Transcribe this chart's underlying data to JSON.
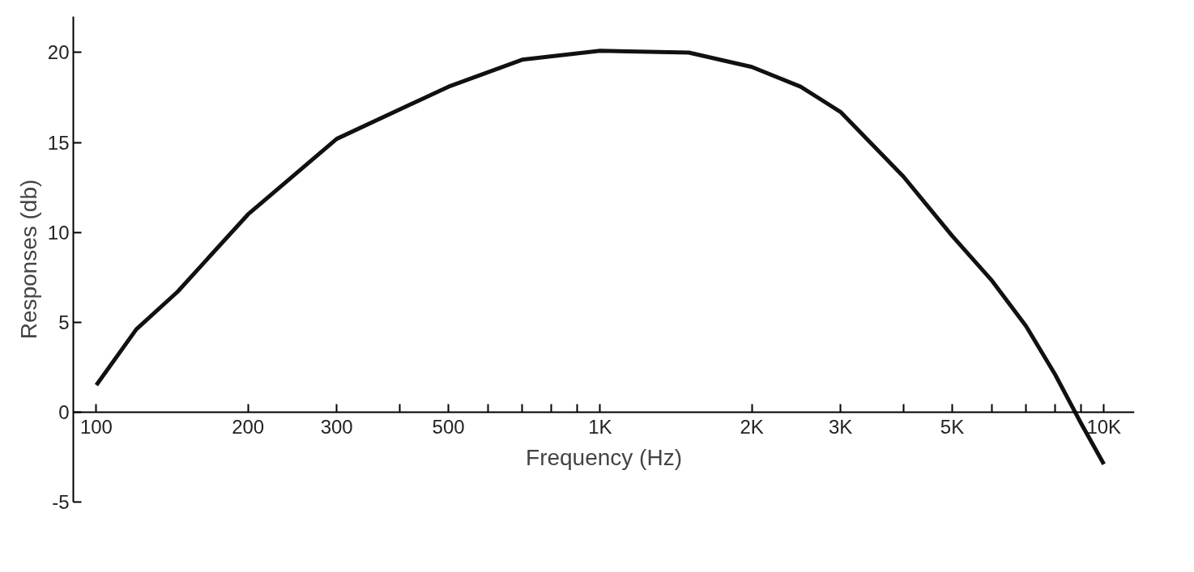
{
  "chart_data": {
    "type": "line",
    "xlabel": "Frequency (Hz)",
    "ylabel": "Responses (db)",
    "log": "x",
    "grid": false,
    "marker": "none",
    "line_style": "solid",
    "x": [
      100,
      120,
      145,
      200,
      300,
      500,
      700,
      1000,
      1500,
      2000,
      2500,
      3000,
      4000,
      5000,
      6000,
      7000,
      8000,
      9000,
      10000
    ],
    "series": [
      {
        "color": "#111111",
        "values": [
          1.5,
          4.6,
          6.7,
          11,
          15.2,
          18.1,
          19.6,
          20.1,
          20,
          19.2,
          18.1,
          16.7,
          13.1,
          9.8,
          7.3,
          4.8,
          2.1,
          -0.6,
          -2.9
        ]
      }
    ],
    "xlim": [
      90,
      11500
    ],
    "ylim": [
      -5,
      22
    ],
    "xticks": [
      100,
      200,
      300,
      {
        "value": 400,
        "label": null
      },
      {
        "value": 500,
        "label": "500"
      },
      {
        "value": 600,
        "label": null
      },
      {
        "value": 700,
        "label": null
      },
      {
        "value": 800,
        "label": null
      },
      {
        "value": 900,
        "label": null
      },
      {
        "value": 1000,
        "label": "1K"
      },
      {
        "value": 2000,
        "label": "2K"
      },
      {
        "value": 3000,
        "label": "3K"
      },
      {
        "value": 4000,
        "label": null
      },
      {
        "value": 5000,
        "label": "5K"
      },
      {
        "value": 6000,
        "label": null
      },
      {
        "value": 7000,
        "label": null
      },
      {
        "value": 8000,
        "label": null
      },
      {
        "value": 9000,
        "label": null
      },
      {
        "value": 10000,
        "label": "10K"
      }
    ],
    "yticks": [
      -5,
      0,
      5,
      10,
      15,
      20
    ]
  }
}
